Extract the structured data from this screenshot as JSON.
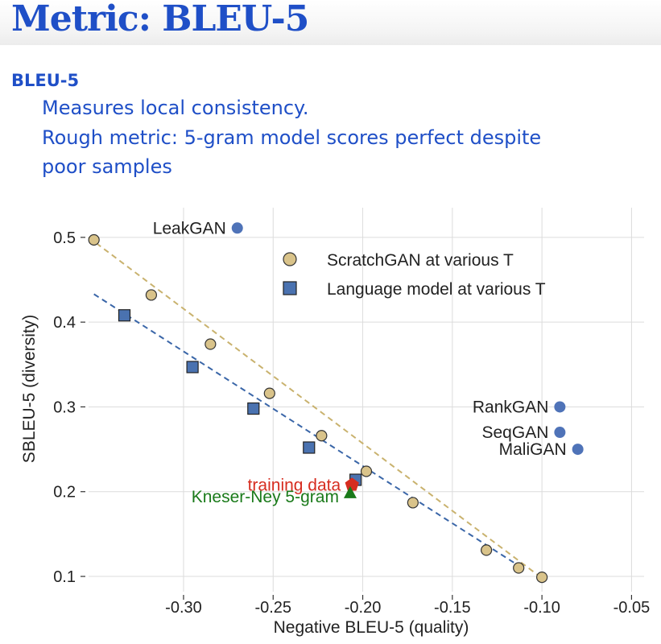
{
  "slide": {
    "title": "Metric: BLEU-5",
    "bullet_heading": "BLEU-5",
    "lines": [
      "Measures local consistency.",
      "Rough metric: 5-gram model scores perfect despite",
      "poor samples"
    ]
  },
  "chart_data": {
    "type": "scatter",
    "xlabel": "Negative BLEU-5 (quality)",
    "ylabel": "SBLEU-5 (diversity)",
    "xlim": [
      -0.353,
      -0.043
    ],
    "ylim": [
      0.082,
      0.535
    ],
    "x_ticks": [
      -0.3,
      -0.25,
      -0.2,
      -0.15,
      -0.1,
      -0.05
    ],
    "x_tick_labels": [
      "-0.30",
      "-0.25",
      "-0.20",
      "-0.15",
      "-0.10",
      "-0.05"
    ],
    "y_ticks": [
      0.1,
      0.2,
      0.3,
      0.4,
      0.5
    ],
    "y_tick_labels": [
      "0.1",
      "0.2",
      "0.3",
      "0.4",
      "0.5"
    ],
    "grid": true,
    "legend_position": "top-center",
    "colors": {
      "scratchgan_fill": "#d9c38a",
      "scratchgan_line": "#c9b26e",
      "lm_fill": "#4a72b0",
      "lm_line": "#3a66a8",
      "gan_points": "#4f73b8",
      "training_data": "#d62d20",
      "kneser_ney": "#1a7a1a"
    },
    "series": [
      {
        "name": "ScratchGAN at various T",
        "marker": "circle",
        "trend_line": [
          [
            -0.353,
            0.5
          ],
          [
            -0.1,
            0.098
          ]
        ],
        "points": [
          [
            -0.35,
            0.497
          ],
          [
            -0.318,
            0.432
          ],
          [
            -0.285,
            0.374
          ],
          [
            -0.252,
            0.316
          ],
          [
            -0.223,
            0.266
          ],
          [
            -0.198,
            0.224
          ],
          [
            -0.172,
            0.187
          ],
          [
            -0.131,
            0.131
          ],
          [
            -0.113,
            0.11
          ],
          [
            -0.1,
            0.099
          ]
        ]
      },
      {
        "name": "Language model at various T",
        "marker": "square",
        "trend_line": [
          [
            -0.35,
            0.433
          ],
          [
            -0.111,
            0.11
          ]
        ],
        "points": [
          [
            -0.333,
            0.408
          ],
          [
            -0.295,
            0.347
          ],
          [
            -0.261,
            0.298
          ],
          [
            -0.23,
            0.252
          ],
          [
            -0.204,
            0.214
          ]
        ]
      }
    ],
    "labeled_points": [
      {
        "label": "LeakGAN",
        "x": -0.27,
        "y": 0.511,
        "marker": "circle",
        "color_key": "gan_points",
        "label_side": "left"
      },
      {
        "label": "RankGAN",
        "x": -0.09,
        "y": 0.3,
        "marker": "circle",
        "color_key": "gan_points",
        "label_side": "left"
      },
      {
        "label": "SeqGAN",
        "x": -0.09,
        "y": 0.27,
        "marker": "circle",
        "color_key": "gan_points",
        "label_side": "left"
      },
      {
        "label": "MaliGAN",
        "x": -0.08,
        "y": 0.25,
        "marker": "circle",
        "color_key": "gan_points",
        "label_side": "left"
      },
      {
        "label": "training data",
        "x": -0.206,
        "y": 0.208,
        "marker": "pentagon",
        "color_key": "training_data",
        "label_side": "left"
      },
      {
        "label": "Kneser-Ney 5-gram",
        "x": -0.207,
        "y": 0.198,
        "marker": "triangle",
        "color_key": "kneser_ney",
        "label_side": "left"
      }
    ]
  }
}
